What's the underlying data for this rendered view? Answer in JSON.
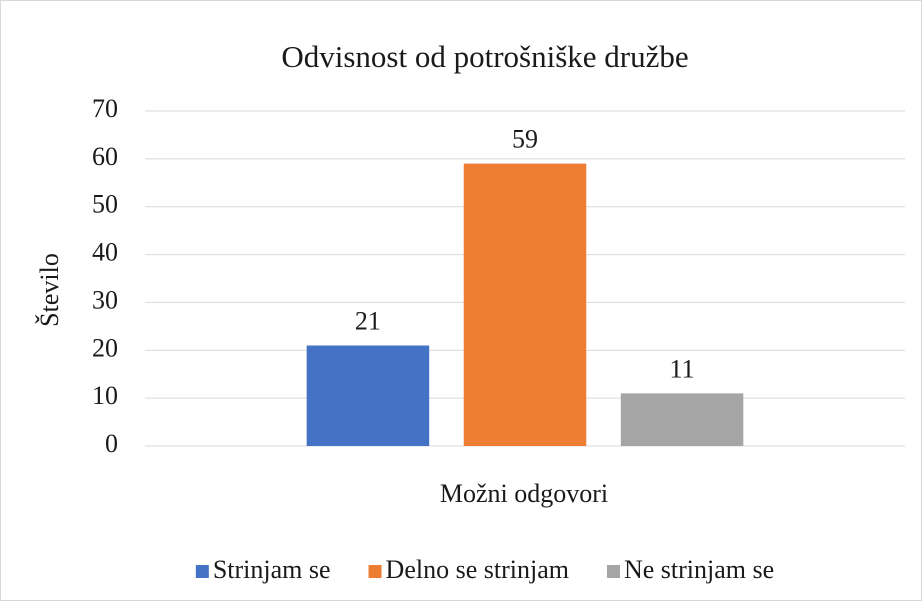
{
  "chart_data": {
    "type": "bar",
    "title": "Odvisnost od potrošniške družbe",
    "x_label": "Možni odgovori",
    "y_label": "Število",
    "categories": [
      null
    ],
    "series": [
      {
        "name": "Strinjam se",
        "color": "#4472c4",
        "values": [
          21
        ]
      },
      {
        "name": "Delno se strinjam",
        "color": "#ed7d31",
        "values": [
          59
        ]
      },
      {
        "name": "Ne strinjam se",
        "color": "#a5a5a5",
        "values": [
          11
        ]
      }
    ],
    "ylim": [
      0,
      70
    ],
    "yticks": [
      0,
      10,
      20,
      30,
      40,
      50,
      60,
      70
    ],
    "grid": true,
    "legend": "bottom"
  }
}
